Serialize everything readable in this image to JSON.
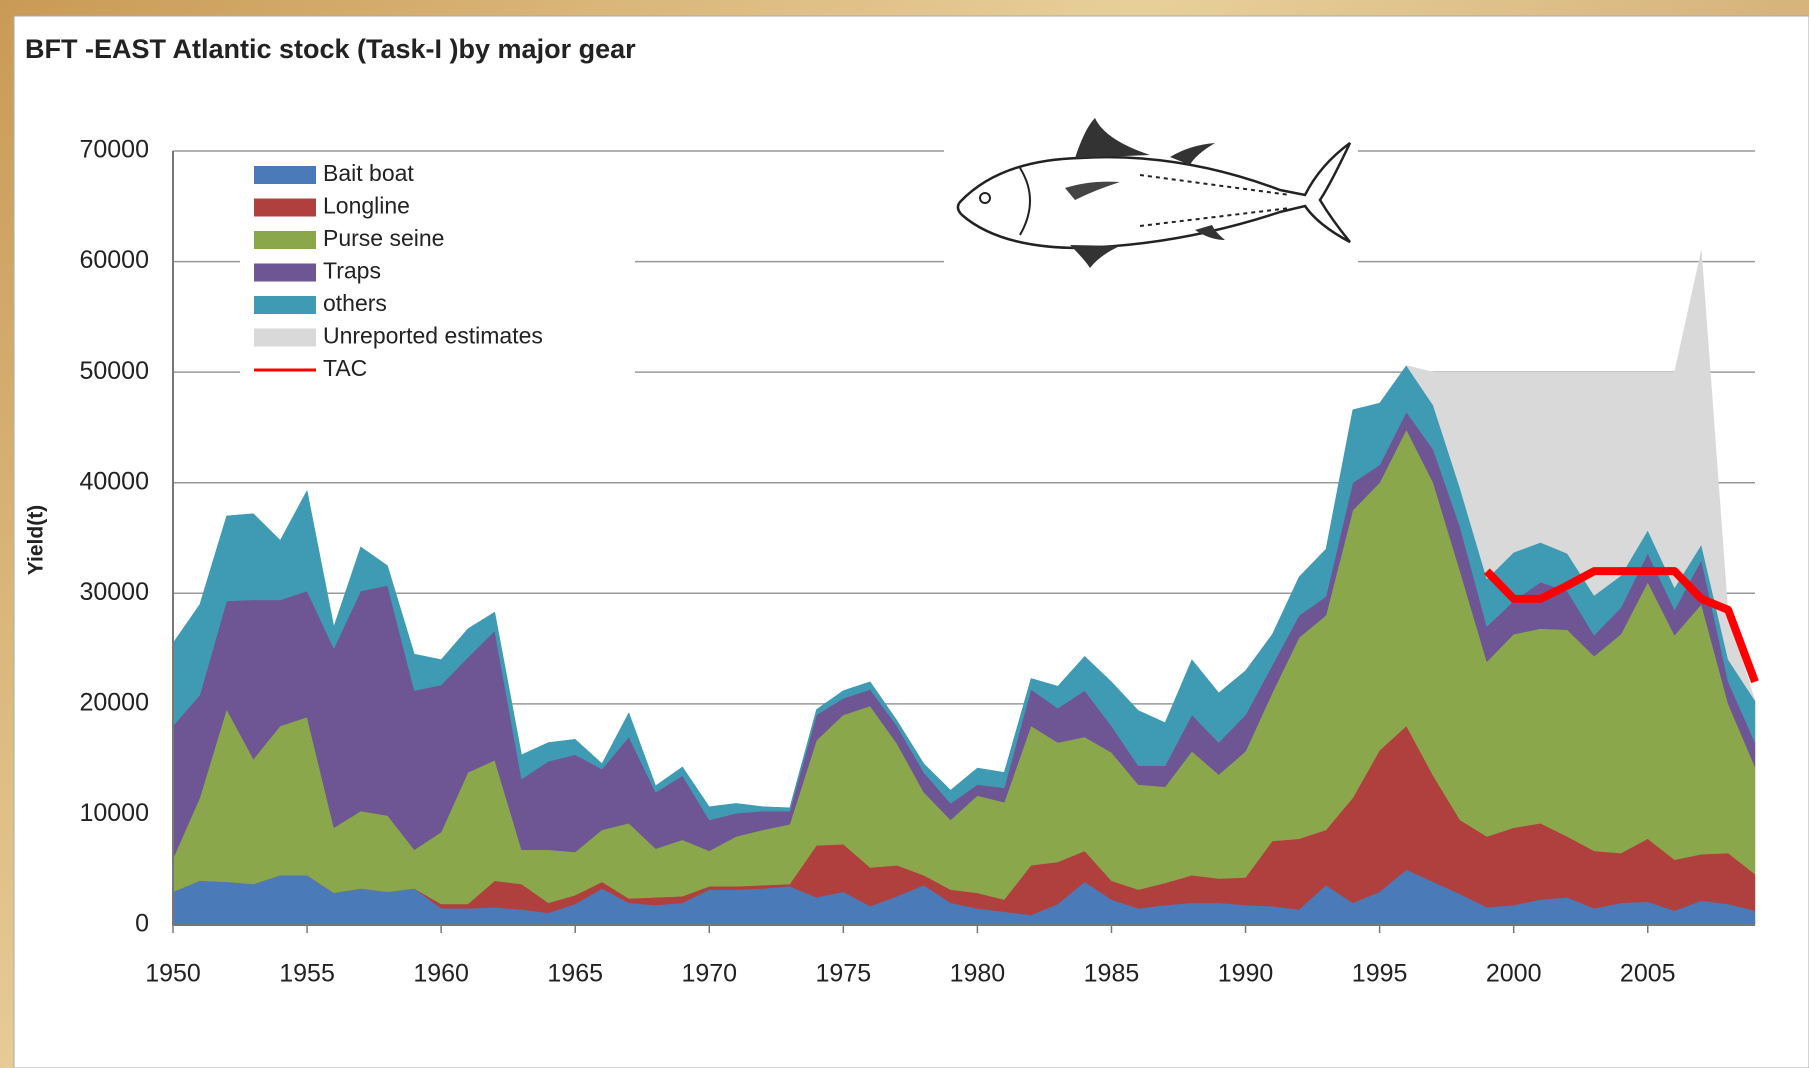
{
  "chart_data": {
    "type": "stacked-area",
    "title": "BFT -EAST Atlantic stock  (Task-I )by major gear",
    "y_label": "Yield(t)",
    "x": [
      1950,
      1951,
      1952,
      1953,
      1954,
      1955,
      1956,
      1957,
      1958,
      1959,
      1960,
      1961,
      1962,
      1963,
      1964,
      1965,
      1966,
      1967,
      1968,
      1969,
      1970,
      1971,
      1972,
      1973,
      1974,
      1975,
      1976,
      1977,
      1978,
      1979,
      1980,
      1981,
      1982,
      1983,
      1984,
      1985,
      1986,
      1987,
      1988,
      1989,
      1990,
      1991,
      1992,
      1993,
      1994,
      1995,
      1996,
      1997,
      1998,
      1999,
      2000,
      2001,
      2002,
      2003,
      2004,
      2005,
      2006,
      2007,
      2008,
      2009
    ],
    "xlim": [
      1950,
      2009
    ],
    "xticks": [
      1950,
      1955,
      1960,
      1965,
      1970,
      1975,
      1980,
      1985,
      1990,
      1995,
      2000,
      2005
    ],
    "ylim": [
      0,
      70000
    ],
    "yticks": [
      0,
      10000,
      20000,
      30000,
      40000,
      50000,
      60000,
      70000
    ],
    "grid": true,
    "series": [
      {
        "name": "Bait boat",
        "color": "#4a7ab8",
        "values": [
          3000,
          4000,
          3900,
          3700,
          4500,
          4500,
          2900,
          3300,
          3000,
          3300,
          1500,
          1500,
          1600,
          1400,
          1100,
          1900,
          3300,
          2000,
          1800,
          2000,
          3200,
          3200,
          3300,
          3500,
          2500,
          3000,
          1700,
          2600,
          3600,
          2000,
          1500,
          1200,
          900,
          1900,
          3900,
          2300,
          1500,
          1800,
          2000,
          2000,
          1800,
          1700,
          1400,
          3600,
          2000,
          3000,
          5000,
          3900,
          2800,
          1600,
          1800,
          2300,
          2500,
          1500,
          2000,
          2100,
          1300,
          2200,
          1900,
          1300
        ]
      },
      {
        "name": "Longline",
        "color": "#b0403d",
        "values": [
          0,
          0,
          0,
          0,
          0,
          0,
          0,
          0,
          0,
          0,
          400,
          400,
          2400,
          2300,
          900,
          800,
          600,
          400,
          700,
          600,
          300,
          300,
          300,
          200,
          4700,
          4300,
          3500,
          2800,
          900,
          1200,
          1400,
          1100,
          4500,
          3800,
          2800,
          1700,
          1700,
          2000,
          2500,
          2200,
          2500,
          5900,
          6400,
          5000,
          9500,
          12800,
          13000,
          9600,
          6700,
          6400,
          7000,
          6900,
          5500,
          5200,
          4500,
          5700,
          4600,
          4200,
          4600,
          3300
        ]
      },
      {
        "name": "Purse seine",
        "color": "#8aa84b",
        "values": [
          3000,
          7500,
          15600,
          11300,
          13500,
          14300,
          5900,
          7000,
          6900,
          3500,
          6500,
          11900,
          10900,
          3100,
          4800,
          3900,
          4700,
          6800,
          4400,
          5100,
          3200,
          4500,
          5000,
          5400,
          9500,
          11700,
          14600,
          11000,
          7500,
          6300,
          8800,
          8800,
          12600,
          10800,
          10300,
          11600,
          9500,
          8700,
          11200,
          9400,
          11400,
          13400,
          18200,
          19400,
          26000,
          24200,
          26800,
          26500,
          22500,
          15800,
          17500,
          17600,
          18700,
          17600,
          19800,
          23200,
          20300,
          22600,
          13500,
          9700
        ]
      },
      {
        "name": "Traps",
        "color": "#6e5594",
        "values": [
          12000,
          9300,
          9800,
          14400,
          11400,
          11400,
          16200,
          19900,
          20800,
          14400,
          13300,
          10400,
          11700,
          6400,
          8000,
          8800,
          5500,
          7800,
          5100,
          5800,
          2800,
          2100,
          1700,
          1200,
          2300,
          1500,
          1500,
          1600,
          1800,
          1500,
          1000,
          1300,
          3300,
          3100,
          4200,
          2400,
          1700,
          1900,
          3300,
          2900,
          3300,
          2500,
          2000,
          1700,
          2500,
          1600,
          1600,
          3000,
          4000,
          3200,
          3000,
          4200,
          3500,
          1900,
          2400,
          2600,
          2300,
          4000,
          2000,
          2200
        ]
      },
      {
        "name": "others",
        "color": "#3e9bb3",
        "values": [
          7500,
          8200,
          7700,
          7800,
          5400,
          9100,
          2000,
          4000,
          1800,
          3300,
          2300,
          2600,
          1700,
          2200,
          1700,
          1400,
          500,
          2200,
          600,
          800,
          1200,
          900,
          400,
          300,
          500,
          700,
          700,
          500,
          800,
          1200,
          1500,
          1400,
          1000,
          2000,
          3100,
          4000,
          5000,
          3900,
          5000,
          4500,
          4000,
          2800,
          3500,
          4300,
          6600,
          5600,
          4200,
          4000,
          3500,
          4300,
          4400,
          3600,
          3400,
          3600,
          2900,
          2100,
          2000,
          1400,
          2000,
          3800
        ]
      },
      {
        "name": "Unreported estimates",
        "color": "#d9d9d9",
        "values": [
          null,
          null,
          null,
          null,
          null,
          null,
          null,
          null,
          null,
          null,
          null,
          null,
          null,
          null,
          null,
          null,
          null,
          null,
          null,
          null,
          null,
          null,
          null,
          null,
          null,
          null,
          null,
          null,
          null,
          null,
          null,
          null,
          null,
          null,
          null,
          null,
          null,
          null,
          null,
          null,
          null,
          null,
          null,
          null,
          null,
          null,
          0,
          3000,
          10500,
          18700,
          16300,
          15400,
          16400,
          20200,
          18400,
          14300,
          19500,
          26600,
          4000,
          0
        ]
      }
    ],
    "lines": [
      {
        "name": "TAC",
        "color": "#ff0000",
        "values": [
          null,
          null,
          null,
          null,
          null,
          null,
          null,
          null,
          null,
          null,
          null,
          null,
          null,
          null,
          null,
          null,
          null,
          null,
          null,
          null,
          null,
          null,
          null,
          null,
          null,
          null,
          null,
          null,
          null,
          null,
          null,
          null,
          null,
          null,
          null,
          null,
          null,
          null,
          null,
          null,
          null,
          null,
          null,
          null,
          null,
          null,
          null,
          null,
          null,
          32000,
          29500,
          29500,
          30700,
          32000,
          32000,
          32000,
          32000,
          29500,
          28500,
          22000
        ]
      }
    ]
  }
}
